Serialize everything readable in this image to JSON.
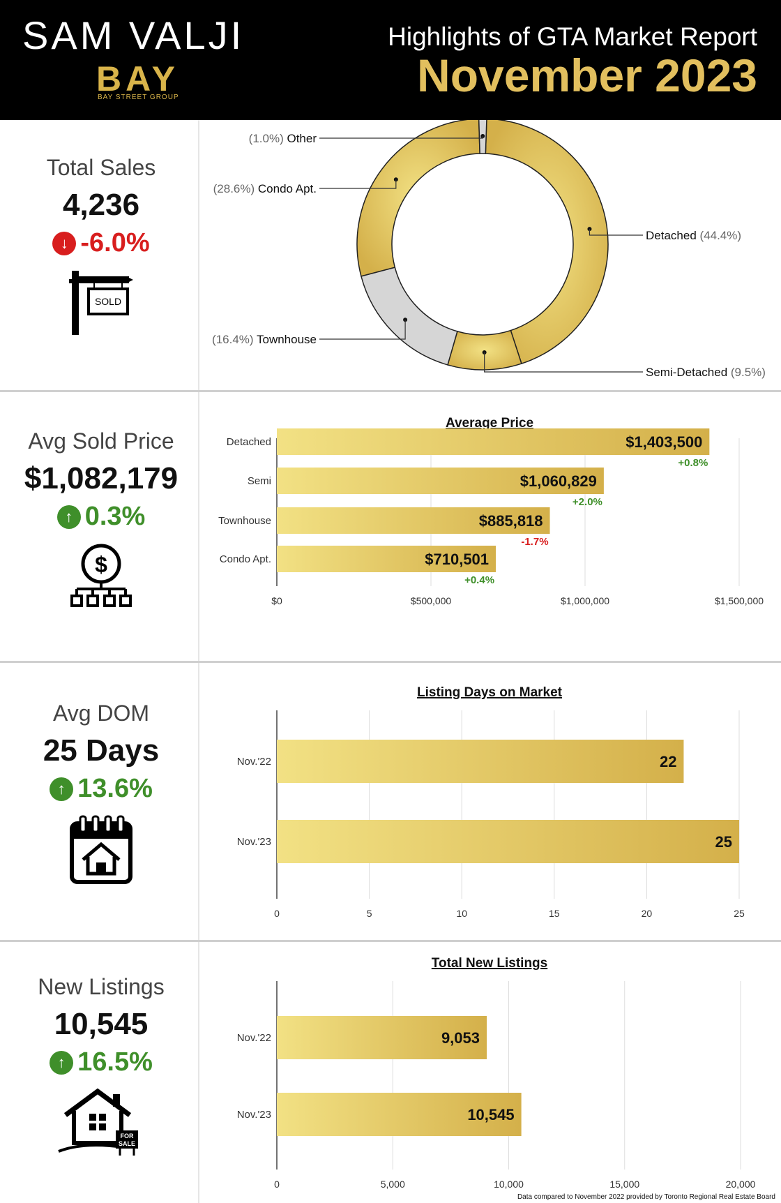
{
  "header": {
    "agent_name": "SAM VALJI",
    "logo_text": "BAY",
    "logo_subtitle": "BAY STREET GROUP",
    "report_title": "Highlights of GTA Market Report",
    "report_month": "November 2023"
  },
  "colors": {
    "gold_light": "#f2e184",
    "gold_dark": "#d4b04a",
    "grey_slice": "#d6d6d6",
    "up_green": "#3f8f2a",
    "down_red": "#d81e1e"
  },
  "stats": {
    "total_sales": {
      "label": "Total Sales",
      "value": "4,236",
      "change": "-6.0%",
      "direction": "down",
      "icon": "sold-sign-icon",
      "icon_text": "SOLD"
    },
    "avg_price": {
      "label": "Avg Sold Price",
      "value": "$1,082,179",
      "change": "0.3%",
      "direction": "up",
      "icon": "dollar-network-icon"
    },
    "avg_dom": {
      "label": "Avg DOM",
      "value": "25 Days",
      "change": "13.6%",
      "direction": "up",
      "icon": "calendar-house-icon"
    },
    "new_listings": {
      "label": "New Listings",
      "value": "10,545",
      "change": "16.5%",
      "direction": "up",
      "icon": "house-for-sale-icon",
      "icon_text_1": "FOR",
      "icon_text_2": "SALE"
    }
  },
  "chart_data": [
    {
      "type": "pie",
      "title": "",
      "slices": [
        {
          "name": "Detached",
          "value": 44.4,
          "pct_label": "(44.4%)",
          "color": "gold"
        },
        {
          "name": "Semi-Detached",
          "value": 9.5,
          "pct_label": "(9.5%)",
          "color": "gold"
        },
        {
          "name": "Townhouse",
          "value": 16.4,
          "pct_label": "(16.4%)",
          "color": "grey"
        },
        {
          "name": "Condo Apt.",
          "value": 28.6,
          "pct_label": "(28.6%)",
          "color": "gold"
        },
        {
          "name": "Other",
          "value": 1.0,
          "pct_label": "(1.0%)",
          "color": "grey"
        }
      ]
    },
    {
      "type": "bar",
      "orientation": "horizontal",
      "title": "Average Price",
      "categories": [
        "Detached",
        "Semi",
        "Townhouse",
        "Condo Apt."
      ],
      "values": [
        1403500,
        1060829,
        885818,
        710501
      ],
      "value_labels": [
        "$1,403,500",
        "$1,060,829",
        "$885,818",
        "$710,501"
      ],
      "changes": [
        "+0.8%",
        "+2.0%",
        "-1.7%",
        "+0.4%"
      ],
      "change_directions": [
        "up",
        "up",
        "down",
        "up"
      ],
      "xlim": [
        0,
        1500000
      ],
      "xticks": [
        0,
        500000,
        1000000,
        1500000
      ],
      "xtick_labels": [
        "$0",
        "$500,000",
        "$1,000,000",
        "$1,500,000"
      ],
      "grid": true
    },
    {
      "type": "bar",
      "orientation": "horizontal",
      "title": "Listing Days on Market",
      "categories": [
        "Nov.'22",
        "Nov.'23"
      ],
      "values": [
        22,
        25
      ],
      "value_labels": [
        "22",
        "25"
      ],
      "xlim": [
        0,
        25
      ],
      "xticks": [
        0,
        5,
        10,
        15,
        20,
        25
      ],
      "xtick_labels": [
        "0",
        "5",
        "10",
        "15",
        "20",
        "25"
      ],
      "grid": true
    },
    {
      "type": "bar",
      "orientation": "horizontal",
      "title": "Total New Listings",
      "categories": [
        "Nov.'22",
        "Nov.'23"
      ],
      "values": [
        9053,
        10545
      ],
      "value_labels": [
        "9,053",
        "10,545"
      ],
      "xlim": [
        0,
        20000
      ],
      "xticks": [
        0,
        5000,
        10000,
        15000,
        20000
      ],
      "xtick_labels": [
        "0",
        "5,000",
        "10,000",
        "15,000",
        "20,000"
      ],
      "grid": true
    }
  ],
  "footer": {
    "note": "Data compared to November 2022 provided by Toronto Regional Real Estate Board"
  }
}
